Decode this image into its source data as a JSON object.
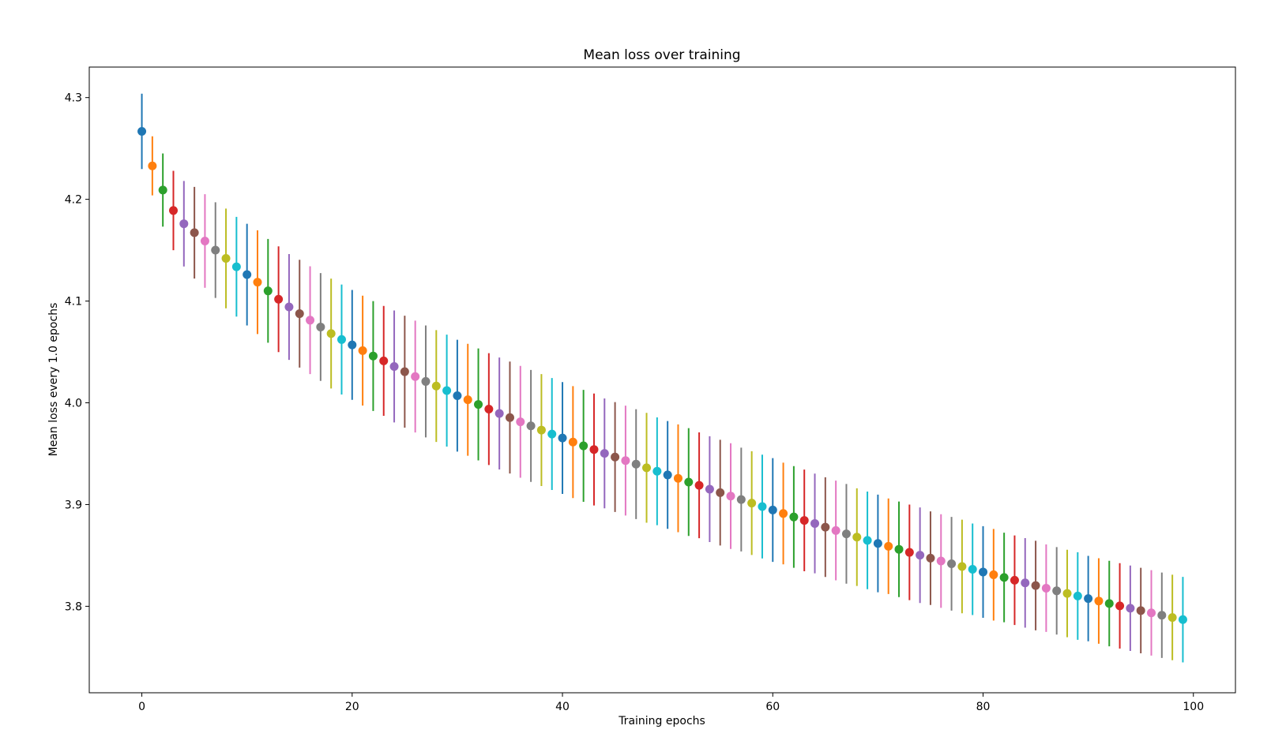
{
  "chart_data": {
    "type": "errorbar",
    "title": "Mean loss over training",
    "xlabel": "Training epochs",
    "ylabel": "Mean loss every 1.0 epochs",
    "xlim": [
      -5,
      104
    ],
    "ylim": [
      3.715,
      4.33
    ],
    "xticks": [
      0,
      20,
      40,
      60,
      80,
      100
    ],
    "yticks": [
      3.8,
      3.9,
      4.0,
      4.1,
      4.2,
      4.3
    ],
    "x": [
      0,
      1,
      2,
      3,
      4,
      5,
      6,
      7,
      8,
      9,
      10,
      11,
      12,
      13,
      14,
      15,
      16,
      17,
      18,
      19,
      20,
      21,
      22,
      23,
      24,
      25,
      26,
      27,
      28,
      29,
      30,
      31,
      32,
      33,
      34,
      35,
      36,
      37,
      38,
      39,
      40,
      41,
      42,
      43,
      44,
      45,
      46,
      47,
      48,
      49,
      50,
      51,
      52,
      53,
      54,
      55,
      56,
      57,
      58,
      59,
      60,
      61,
      62,
      63,
      64,
      65,
      66,
      67,
      68,
      69,
      70,
      71,
      72,
      73,
      74,
      75,
      76,
      77,
      78,
      79,
      80,
      81,
      82,
      83,
      84,
      85,
      86,
      87,
      88,
      89,
      90,
      91,
      92,
      93,
      94,
      95,
      96,
      97,
      98,
      99
    ],
    "y": [
      4.2668,
      4.2329,
      4.2091,
      4.189,
      4.176,
      4.1672,
      4.159,
      4.1501,
      4.1419,
      4.1337,
      4.126,
      4.1186,
      4.11,
      4.1018,
      4.0942,
      4.0876,
      4.0812,
      4.0745,
      4.0681,
      4.0622,
      4.0569,
      4.0513,
      4.046,
      4.0412,
      4.0357,
      4.0306,
      4.0258,
      4.021,
      4.0165,
      4.012,
      4.007,
      4.003,
      3.9984,
      3.9938,
      3.9895,
      3.9855,
      3.9813,
      3.9773,
      3.9732,
      3.9693,
      3.9654,
      3.9614,
      3.9577,
      3.9541,
      3.9503,
      3.9467,
      3.9432,
      3.9397,
      3.9361,
      3.9327,
      3.9291,
      3.9258,
      3.9221,
      3.9189,
      3.9151,
      3.9117,
      3.9083,
      3.9049,
      3.9014,
      3.898,
      3.8946,
      3.8912,
      3.8878,
      3.8844,
      3.8814,
      3.8778,
      3.8745,
      3.8712,
      3.868,
      3.8648,
      3.8618,
      3.859,
      3.856,
      3.853,
      3.8502,
      3.8473,
      3.8445,
      3.8418,
      3.8391,
      3.8364,
      3.8337,
      3.831,
      3.8283,
      3.8256,
      3.823,
      3.8204,
      3.8178,
      3.8152,
      3.8126,
      3.8101,
      3.8076,
      3.8052,
      3.8027,
      3.8004,
      3.7981,
      3.7958,
      3.7935,
      3.7912,
      3.789,
      3.7869
    ],
    "yerr": [
      0.037,
      0.029,
      0.036,
      0.039,
      0.042,
      0.045,
      0.046,
      0.047,
      0.049,
      0.049,
      0.05,
      0.051,
      0.051,
      0.052,
      0.052,
      0.053,
      0.053,
      0.053,
      0.054,
      0.054,
      0.054,
      0.054,
      0.054,
      0.054,
      0.055,
      0.055,
      0.055,
      0.055,
      0.055,
      0.055,
      0.055,
      0.055,
      0.055,
      0.055,
      0.055,
      0.055,
      0.055,
      0.055,
      0.055,
      0.055,
      0.055,
      0.055,
      0.055,
      0.055,
      0.054,
      0.054,
      0.054,
      0.054,
      0.054,
      0.053,
      0.053,
      0.053,
      0.053,
      0.052,
      0.052,
      0.052,
      0.052,
      0.051,
      0.051,
      0.051,
      0.051,
      0.05,
      0.05,
      0.05,
      0.049,
      0.049,
      0.049,
      0.049,
      0.048,
      0.048,
      0.048,
      0.047,
      0.047,
      0.047,
      0.047,
      0.046,
      0.046,
      0.046,
      0.046,
      0.045,
      0.045,
      0.045,
      0.044,
      0.044,
      0.044,
      0.044,
      0.043,
      0.043,
      0.043,
      0.043,
      0.042,
      0.042,
      0.042,
      0.042,
      0.042,
      0.042,
      0.042,
      0.042,
      0.042,
      0.042
    ],
    "colors": [
      "#1f77b4",
      "#ff7f0e",
      "#2ca02c",
      "#d62728",
      "#9467bd",
      "#8c564b",
      "#e377c2",
      "#7f7f7f",
      "#bcbd22",
      "#17becf"
    ],
    "grid": false,
    "legend": "none"
  }
}
